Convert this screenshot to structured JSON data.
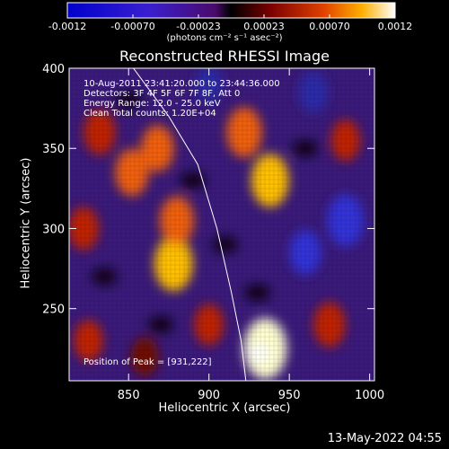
{
  "colorbar": {
    "min": -0.0012,
    "max": 0.0012,
    "ticks": [
      "-0.0012",
      "-0.00070",
      "-0.00023",
      "0.00023",
      "0.00070",
      "0.0012"
    ],
    "units": "(photons cm⁻² s⁻¹ asec⁻²)"
  },
  "chart_data": {
    "type": "heatmap",
    "title": "Reconstructed RHESSI Image",
    "xlabel": "Heliocentric X (arcsec)",
    "ylabel": "Heliocentric Y (arcsec)",
    "xlim": [
      813,
      1003
    ],
    "ylim": [
      205,
      400
    ],
    "xticks": [
      850,
      900,
      950,
      1000
    ],
    "yticks": [
      250,
      300,
      350,
      400
    ],
    "annotations": [
      "10-Aug-2011 23:41:20.000 to 23:44:36.000",
      "Detectors: 3F 4F 5F 6F 7F 8F, Att 0",
      "Energy Range: 12.0 - 25.0 keV",
      "Clean     Total counts: 1.20E+04"
    ],
    "peak_label": "Position of Peak = [931,222]",
    "peak": [
      931,
      222
    ],
    "bright_regions": [
      {
        "x": 935,
        "y": 225,
        "level": 1.0
      },
      {
        "x": 938,
        "y": 330,
        "level": 0.78
      },
      {
        "x": 922,
        "y": 360,
        "level": 0.7
      },
      {
        "x": 878,
        "y": 278,
        "level": 0.82
      },
      {
        "x": 880,
        "y": 305,
        "level": 0.65
      },
      {
        "x": 852,
        "y": 335,
        "level": 0.62
      },
      {
        "x": 868,
        "y": 350,
        "level": 0.6
      },
      {
        "x": 832,
        "y": 360,
        "level": 0.55
      },
      {
        "x": 822,
        "y": 300,
        "level": 0.5
      },
      {
        "x": 825,
        "y": 230,
        "level": 0.45
      },
      {
        "x": 975,
        "y": 240,
        "level": 0.55
      },
      {
        "x": 985,
        "y": 355,
        "level": 0.45
      },
      {
        "x": 900,
        "y": 240,
        "level": 0.45
      },
      {
        "x": 860,
        "y": 220,
        "level": 0.4
      }
    ],
    "dark_regions": [
      {
        "x": 985,
        "y": 305,
        "level": -0.75
      },
      {
        "x": 960,
        "y": 285,
        "level": -0.55
      },
      {
        "x": 965,
        "y": 385,
        "level": -0.45
      },
      {
        "x": 900,
        "y": 390,
        "level": -0.35
      }
    ]
  },
  "date_stamp": "13-May-2022 04:55"
}
